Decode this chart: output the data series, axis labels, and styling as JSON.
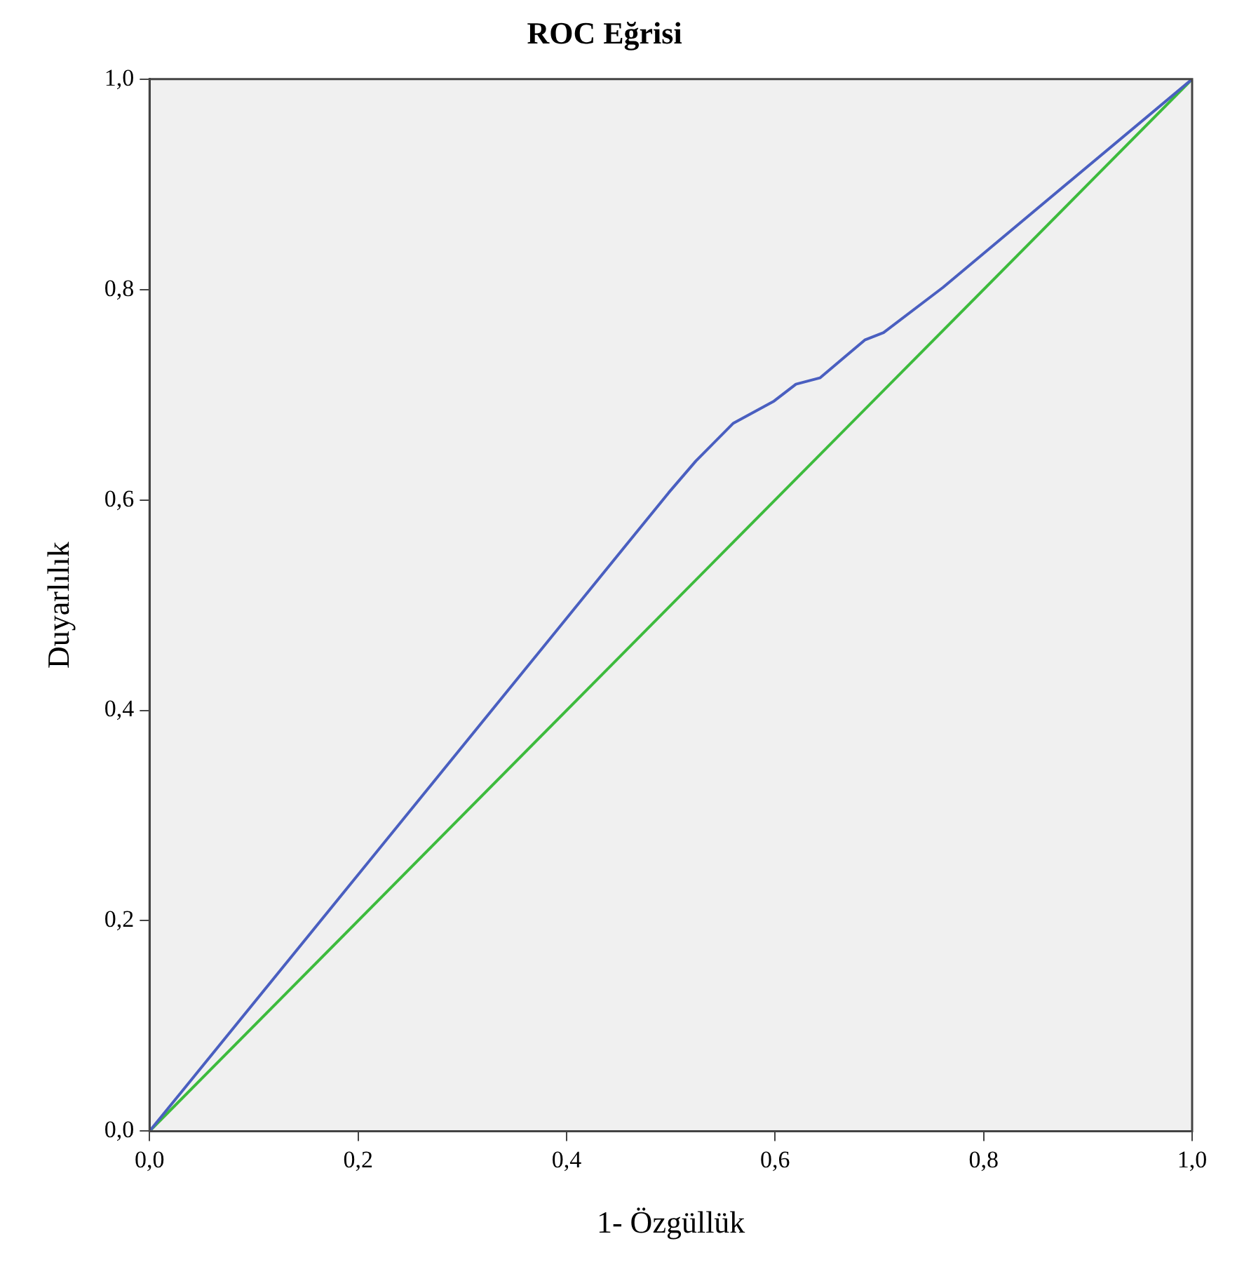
{
  "chart_data": {
    "type": "line",
    "title": "ROC Eğrisi",
    "xlabel": "1- Özgüllük",
    "ylabel": "Duyarlılık",
    "xlim": [
      0,
      1
    ],
    "ylim": [
      0,
      1
    ],
    "xticks": [
      {
        "value": 0,
        "label": "0,0"
      },
      {
        "value": 0.2,
        "label": "0,2"
      },
      {
        "value": 0.4,
        "label": "0,4"
      },
      {
        "value": 0.6,
        "label": "0,6"
      },
      {
        "value": 0.8,
        "label": "0,8"
      },
      {
        "value": 1,
        "label": "1,0"
      }
    ],
    "yticks": [
      {
        "value": 0,
        "label": "0,0"
      },
      {
        "value": 0.2,
        "label": "0,2"
      },
      {
        "value": 0.4,
        "label": "0,4"
      },
      {
        "value": 0.6,
        "label": "0,6"
      },
      {
        "value": 0.8,
        "label": "0,8"
      },
      {
        "value": 1,
        "label": "1,0"
      }
    ],
    "grid": false,
    "legend": false,
    "marker": "none",
    "line_style": "solid",
    "series": [
      {
        "color": "#4a5fc0",
        "x": [
          0,
          0.498,
          0.524,
          0.56,
          0.599,
          0.62,
          0.643,
          0.686,
          0.704,
          0.761,
          1
        ],
        "values": [
          0,
          0.607,
          0.637,
          0.673,
          0.694,
          0.71,
          0.716,
          0.752,
          0.759,
          0.802,
          1
        ]
      },
      {
        "color": "#3dbb3d",
        "x": [
          0,
          1
        ],
        "values": [
          0,
          1
        ]
      }
    ]
  }
}
